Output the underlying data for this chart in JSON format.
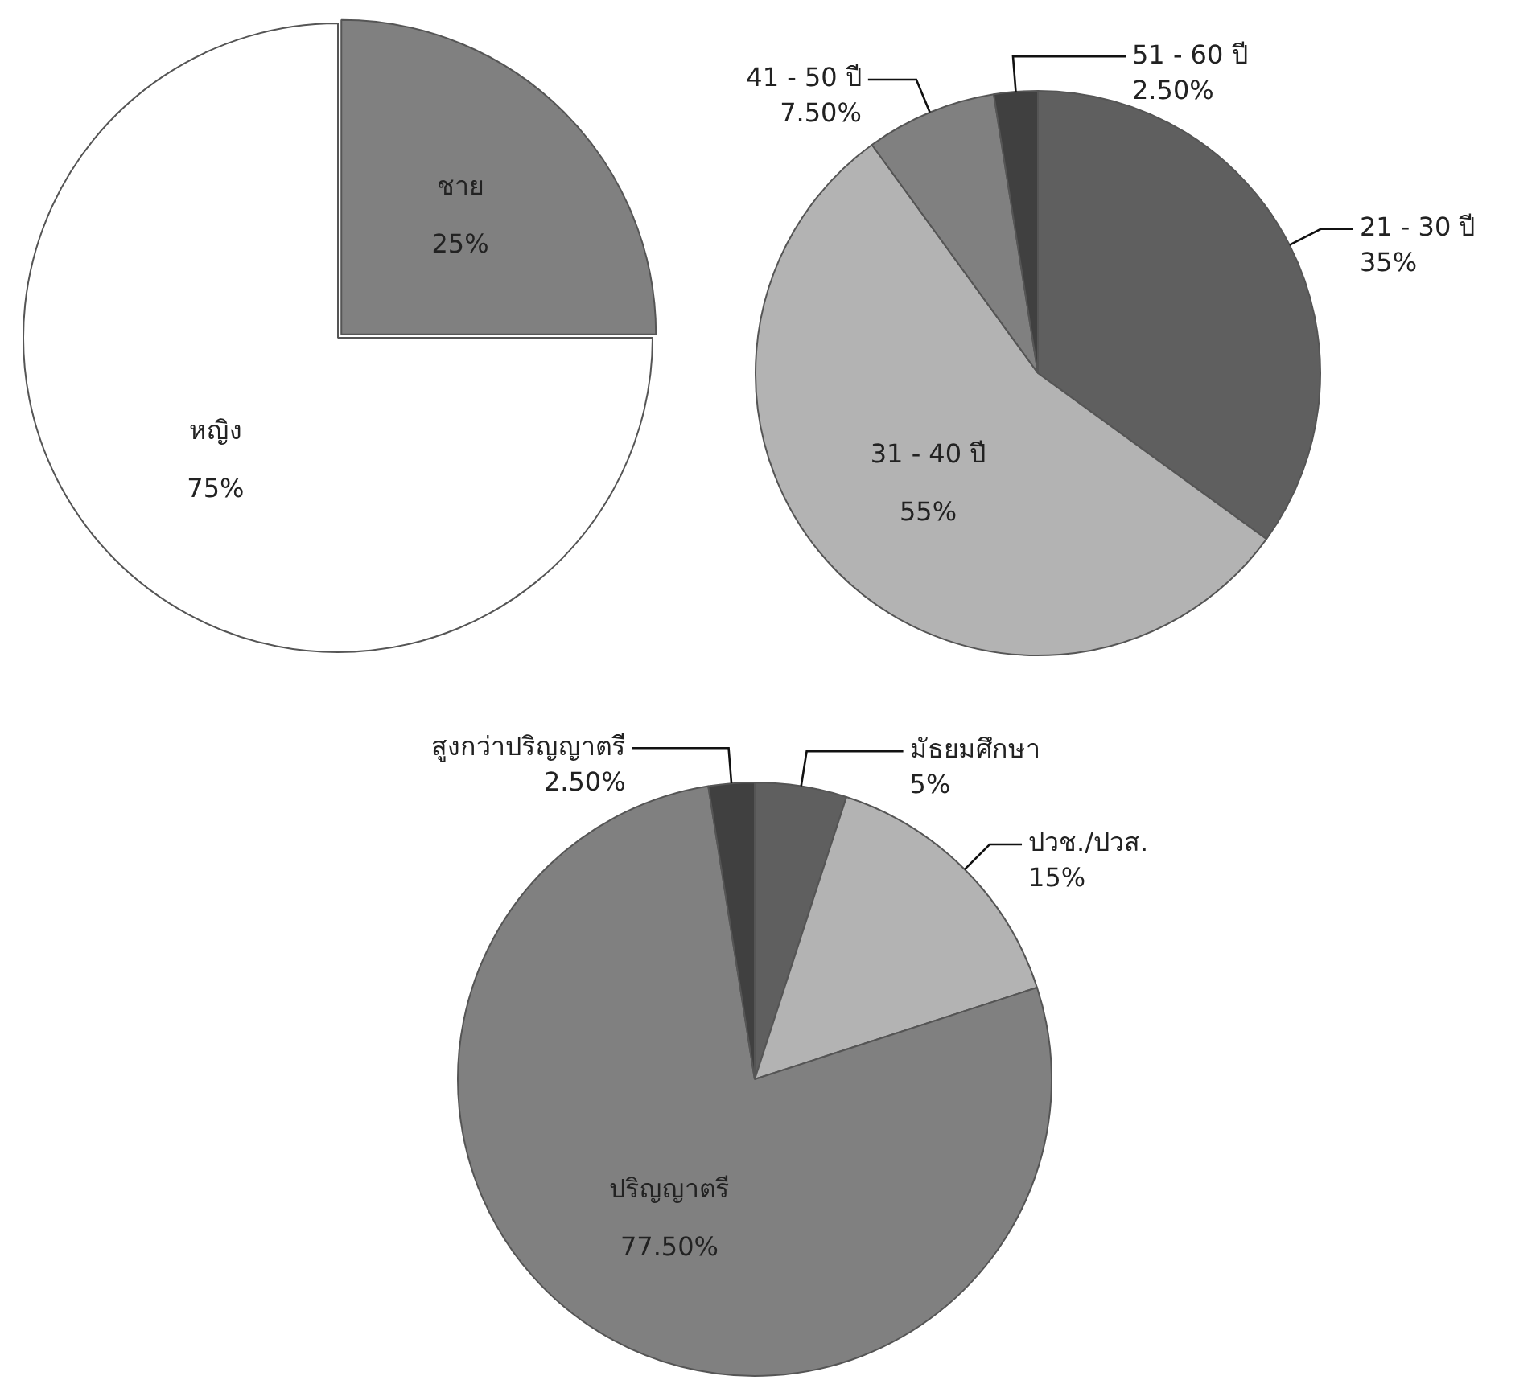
{
  "chart_data": [
    {
      "type": "pie",
      "categories": [
        "ชาย",
        "หญิง"
      ],
      "values": [
        25,
        75
      ],
      "colors": [
        "#808080",
        "#ffffff"
      ],
      "value_labels": [
        "25%",
        "75%"
      ],
      "legend": false
    },
    {
      "type": "pie",
      "categories": [
        "21 - 30 ปี",
        "31 - 40 ปี",
        "41 - 50 ปี",
        "51 - 60 ปี"
      ],
      "values": [
        35,
        55,
        7.5,
        2.5
      ],
      "colors": [
        "#5f5f5f",
        "#b3b3b3",
        "#808080",
        "#404040"
      ],
      "value_labels": [
        "35%",
        "55%",
        "7.50%",
        "2.50%"
      ],
      "legend": false
    },
    {
      "type": "pie",
      "categories": [
        "มัธยมศึกษา",
        "ปวช./ปวส.",
        "ปริญญาตรี",
        "สูงกว่าปริญญาตรี"
      ],
      "values": [
        5,
        15,
        77.5,
        2.5
      ],
      "colors": [
        "#5f5f5f",
        "#b3b3b3",
        "#808080",
        "#404040"
      ],
      "value_labels": [
        "5%",
        "15%",
        "77.50%",
        "2.50%"
      ],
      "legend": false
    }
  ]
}
